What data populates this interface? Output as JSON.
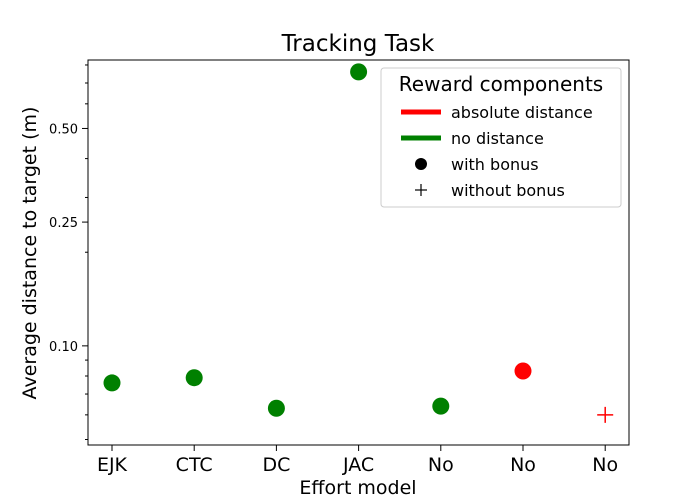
{
  "chart_data": {
    "type": "scatter",
    "title": "Tracking Task",
    "xlabel": "Effort model",
    "ylabel": "Average distance to target (m)",
    "categories": [
      "EJK",
      "CTC",
      "DC",
      "JAC",
      "No",
      "No",
      "No"
    ],
    "y_scale": "log",
    "ylim": [
      0.048,
      0.83
    ],
    "yticks": [
      {
        "value": 0.1,
        "label": "0.10"
      },
      {
        "value": 0.25,
        "label": "0.25"
      },
      {
        "value": 0.5,
        "label": "0.50"
      }
    ],
    "minor_yticks": [
      0.05,
      0.06,
      0.07,
      0.08,
      0.09,
      0.2,
      0.3,
      0.4,
      0.6,
      0.7,
      0.8
    ],
    "points": [
      {
        "category_index": 0,
        "y": 0.076,
        "color": "#008000",
        "marker": "circle"
      },
      {
        "category_index": 1,
        "y": 0.079,
        "color": "#008000",
        "marker": "circle"
      },
      {
        "category_index": 2,
        "y": 0.063,
        "color": "#008000",
        "marker": "circle"
      },
      {
        "category_index": 3,
        "y": 0.76,
        "color": "#008000",
        "marker": "circle"
      },
      {
        "category_index": 4,
        "y": 0.064,
        "color": "#008000",
        "marker": "circle"
      },
      {
        "category_index": 5,
        "y": 0.083,
        "color": "#ff0000",
        "marker": "circle"
      },
      {
        "category_index": 6,
        "y": 0.06,
        "color": "#ff0000",
        "marker": "plus"
      }
    ],
    "legend": {
      "title": "Reward components",
      "placement": "top-right",
      "entries": [
        {
          "label": "absolute distance",
          "kind": "line",
          "color": "#ff0000"
        },
        {
          "label": "no distance",
          "kind": "line",
          "color": "#008000"
        },
        {
          "label": "with bonus",
          "kind": "circle",
          "color": "#000000"
        },
        {
          "label": "without bonus",
          "kind": "plus",
          "color": "#000000"
        }
      ]
    },
    "grid": false
  }
}
